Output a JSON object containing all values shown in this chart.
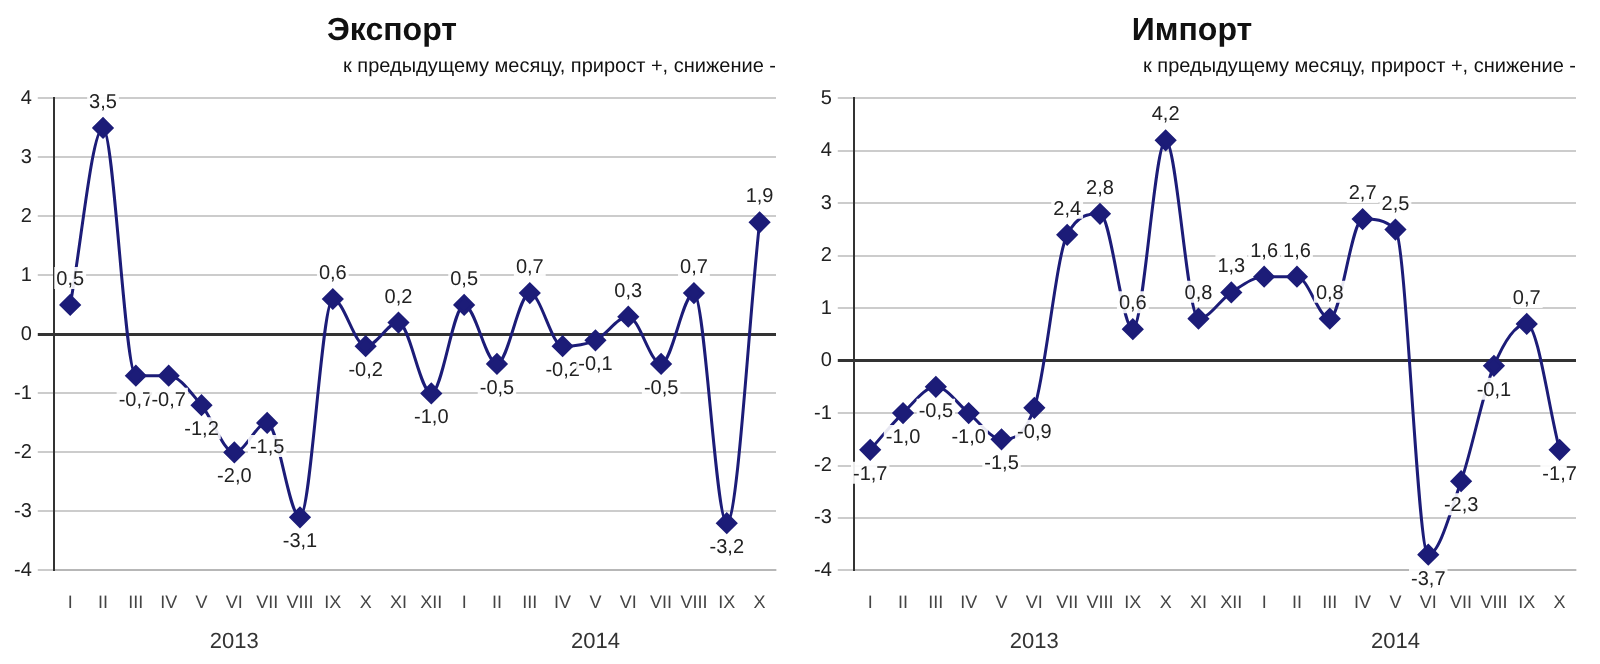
{
  "chart_data": [
    {
      "type": "line",
      "title": "Экспорт",
      "subtitle": "к предыдущему месяцу, прирост +, снижение -",
      "categories": [
        "I",
        "II",
        "III",
        "IV",
        "V",
        "VI",
        "VII",
        "VIII",
        "IX",
        "X",
        "XI",
        "XII",
        "I",
        "II",
        "III",
        "IV",
        "V",
        "VI",
        "VII",
        "VIII",
        "IX",
        "X"
      ],
      "series": [
        {
          "color": "#1c1c78",
          "values": [
            0.5,
            3.5,
            -0.7,
            -0.7,
            -1.2,
            -2.0,
            -1.5,
            -3.1,
            0.6,
            -0.2,
            0.2,
            -1.0,
            0.5,
            -0.5,
            0.7,
            -0.2,
            -0.1,
            0.3,
            -0.5,
            0.7,
            -3.2,
            1.9
          ],
          "value_labels": [
            "0,5",
            "3,5",
            "-0,7",
            "-0,7",
            "-1,2",
            "-2,0",
            "-1,5",
            "-3,1",
            "0,6",
            "-0,2",
            "0,2",
            "-1,0",
            "0,5",
            "-0,5",
            "0,7",
            "-0,2",
            "-0,1",
            "0,3",
            "-0,5",
            "0,7",
            "-3,2",
            "1,9"
          ]
        }
      ],
      "ylim": [
        -4,
        4
      ],
      "yticks": [
        -4,
        -3,
        -2,
        -1,
        0,
        1,
        2,
        3,
        4
      ],
      "grid": "y",
      "legend": false,
      "marker": "diamond",
      "line_style": "solid",
      "annotations": [
        "2013",
        "2014"
      ]
    },
    {
      "type": "line",
      "title": "Импорт",
      "subtitle": "к предыдущему месяцу, прирост +, снижение -",
      "categories": [
        "I",
        "II",
        "III",
        "IV",
        "V",
        "VI",
        "VII",
        "VIII",
        "IX",
        "X",
        "XI",
        "XII",
        "I",
        "II",
        "III",
        "IV",
        "V",
        "VI",
        "VII",
        "VIII",
        "IX",
        "X"
      ],
      "series": [
        {
          "color": "#1c1c78",
          "values": [
            -1.7,
            -1.0,
            -0.5,
            -1.0,
            -1.5,
            -0.9,
            2.4,
            2.8,
            0.6,
            4.2,
            0.8,
            1.3,
            1.6,
            1.6,
            0.8,
            2.7,
            2.5,
            -3.7,
            -2.3,
            -0.1,
            0.7,
            -1.7
          ],
          "value_labels": [
            "-1,7",
            "-1,0",
            "-0,5",
            "-1,0",
            "-1,5",
            "-0,9",
            "2,4",
            "2,8",
            "0,6",
            "4,2",
            "0,8",
            "1,3",
            "1,6",
            "1,6",
            "0,8",
            "2,7",
            "2,5",
            "-3,7",
            "-2,3",
            "-0,1",
            "0,7",
            "-1,7"
          ]
        }
      ],
      "ylim": [
        -4,
        5
      ],
      "yticks": [
        -4,
        -3,
        -2,
        -1,
        0,
        1,
        2,
        3,
        4,
        5
      ],
      "grid": "y",
      "legend": false,
      "marker": "diamond",
      "line_style": "solid",
      "annotations": [
        "2013",
        "2014"
      ]
    }
  ]
}
